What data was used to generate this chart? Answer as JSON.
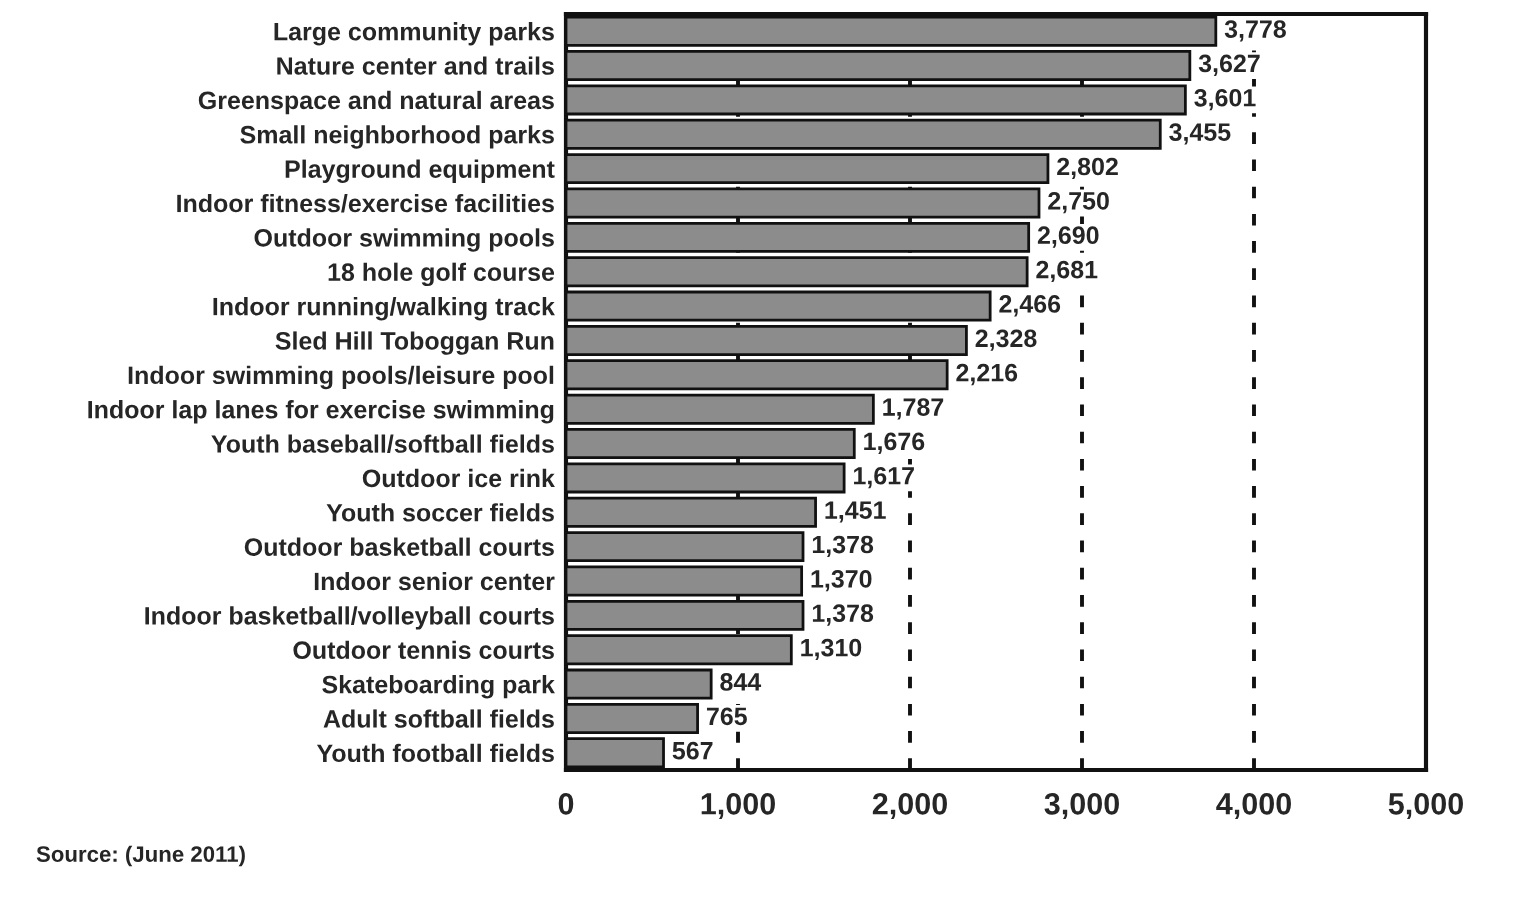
{
  "chart_data": {
    "type": "bar",
    "orientation": "horizontal",
    "categories": [
      "Large community parks",
      "Nature center and trails",
      "Greenspace and natural areas",
      "Small neighborhood parks",
      "Playground equipment",
      "Indoor fitness/exercise facilities",
      "Outdoor swimming pools",
      "18 hole golf course",
      "Indoor running/walking track",
      "Sled Hill Toboggan Run",
      "Indoor swimming pools/leisure pool",
      "Indoor lap lanes for exercise swimming",
      "Youth baseball/softball fields",
      "Outdoor ice rink",
      "Youth soccer fields",
      "Outdoor basketball courts",
      "Indoor senior center",
      "Indoor basketball/volleyball courts",
      "Outdoor tennis courts",
      "Skateboarding park",
      "Adult softball fields",
      "Youth football fields"
    ],
    "values": [
      3778,
      3627,
      3601,
      3455,
      2802,
      2750,
      2690,
      2681,
      2466,
      2328,
      2216,
      1787,
      1676,
      1617,
      1451,
      1378,
      1370,
      1378,
      1310,
      844,
      765,
      567
    ],
    "value_labels": [
      "3,778",
      "3,627",
      "3,601",
      "3,455",
      "2,802",
      "2,750",
      "2,690",
      "2,681",
      "2,466",
      "2,328",
      "2,216",
      "1,787",
      "1,676",
      "1,617",
      "1,451",
      "1,378",
      "1,370",
      "1,378",
      "1,310",
      "844",
      "765",
      "567"
    ],
    "color": "#8c8c8c",
    "xlim": [
      0,
      5000
    ],
    "xticks": [
      {
        "value": 0,
        "label": "0"
      },
      {
        "value": 1000,
        "label": "1,000"
      },
      {
        "value": 2000,
        "label": "2,000"
      },
      {
        "value": 3000,
        "label": "3,000"
      },
      {
        "value": 4000,
        "label": "4,000"
      },
      {
        "value": 5000,
        "label": "5,000"
      }
    ],
    "grid": "x",
    "line_style": "dashed",
    "annotations": [
      "Source: (June 2011)"
    ]
  }
}
